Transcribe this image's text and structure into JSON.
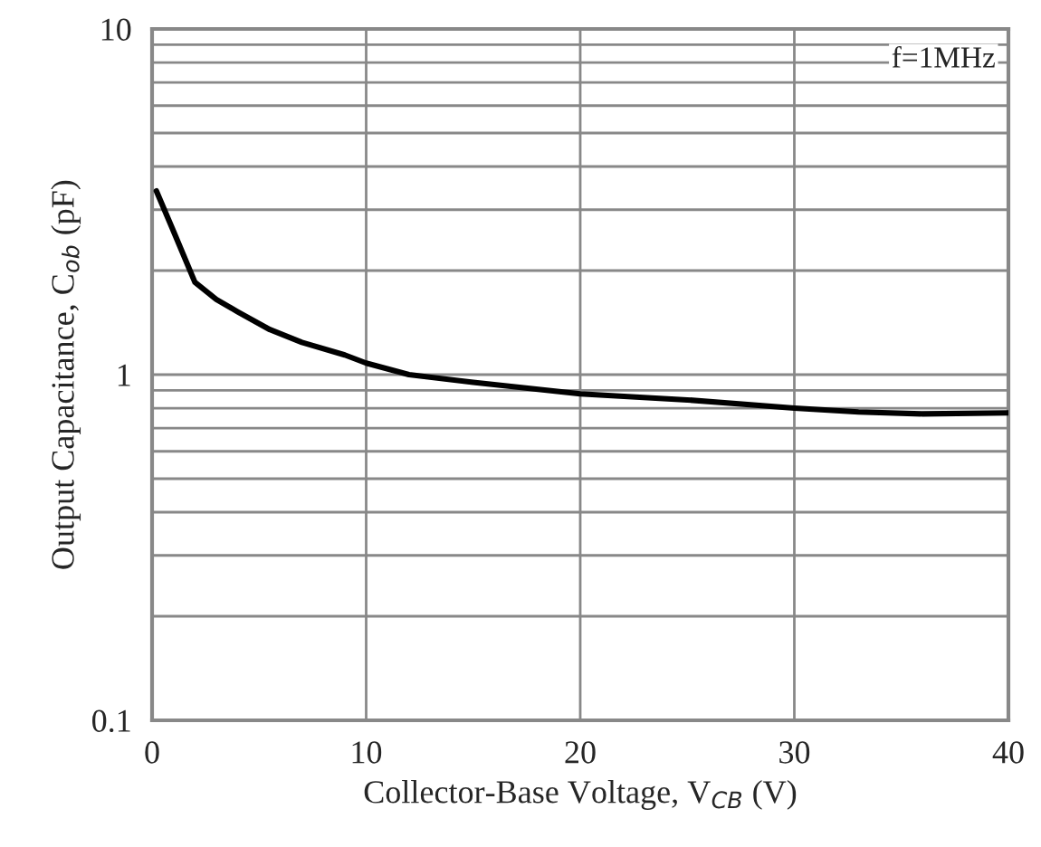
{
  "chart_data": {
    "type": "line",
    "xlabel": "Collector-Base Voltage, V$_{CB}$ (V)",
    "ylabel": "Output Capacitance, C$_{ob}$ (pF)",
    "x": [
      0.2,
      1,
      2,
      3,
      4,
      5.5,
      7,
      9,
      10,
      12,
      15,
      20,
      25,
      30,
      33,
      36,
      40
    ],
    "series": [
      {
        "color": "#000000",
        "values": [
          3.4,
          2.6,
          1.85,
          1.65,
          1.52,
          1.35,
          1.24,
          1.14,
          1.08,
          1.0,
          0.95,
          0.88,
          0.845,
          0.8,
          0.78,
          0.77,
          0.775
        ]
      }
    ],
    "log": "y",
    "xlim": [
      0,
      40
    ],
    "xticks": [
      0,
      10,
      20,
      30,
      40
    ],
    "ylim": [
      0.1,
      10
    ],
    "yticks": [
      0.1,
      1,
      10
    ],
    "grid": true,
    "line_style": "solid",
    "marker": "none",
    "annotations": [
      "f=1MHz"
    ]
  }
}
